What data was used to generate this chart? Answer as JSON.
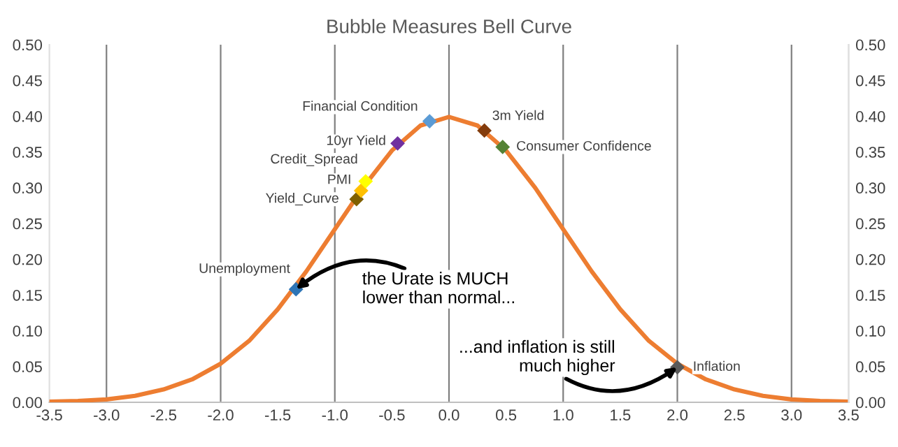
{
  "chart_data": {
    "type": "line",
    "title": "Bubble Measures Bell Curve",
    "xlim": [
      -3.5,
      3.5
    ],
    "xticks": [
      {
        "value": -3.5,
        "label": "-3.5"
      },
      {
        "value": -3,
        "label": "-3.0"
      },
      {
        "value": -2.5,
        "label": "-2.5"
      },
      {
        "value": -2,
        "label": "-2.0"
      },
      {
        "value": -1.5,
        "label": "-1.5"
      },
      {
        "value": -1,
        "label": "-1.0"
      },
      {
        "value": -0.5,
        "label": "-0.5"
      },
      {
        "value": 0,
        "label": "0.0"
      },
      {
        "value": 0.5,
        "label": "0.5"
      },
      {
        "value": 1,
        "label": "1.0"
      },
      {
        "value": 1.5,
        "label": "1.5"
      },
      {
        "value": 2,
        "label": "2.0"
      },
      {
        "value": 2.5,
        "label": "2.5"
      },
      {
        "value": 3,
        "label": "3.0"
      },
      {
        "value": 3.5,
        "label": "3.5"
      }
    ],
    "ylim": [
      0,
      0.5
    ],
    "yticks": [
      {
        "value": 0,
        "label": "0.00"
      },
      {
        "value": 0.05,
        "label": "0.05"
      },
      {
        "value": 0.1,
        "label": "0.10"
      },
      {
        "value": 0.15,
        "label": "0.15"
      },
      {
        "value": 0.2,
        "label": "0.20"
      },
      {
        "value": 0.25,
        "label": "0.25"
      },
      {
        "value": 0.3,
        "label": "0.30"
      },
      {
        "value": 0.35,
        "label": "0.35"
      },
      {
        "value": 0.4,
        "label": "0.40"
      },
      {
        "value": 0.45,
        "label": "0.45"
      },
      {
        "value": 0.5,
        "label": "0.50"
      }
    ],
    "y2lim": [
      0,
      0.5
    ],
    "y2ticks": [
      {
        "value": 0,
        "label": "0.00"
      },
      {
        "value": 0.05,
        "label": "0.05"
      },
      {
        "value": 0.1,
        "label": "0.10"
      },
      {
        "value": 0.15,
        "label": "0.15"
      },
      {
        "value": 0.2,
        "label": "0.20"
      },
      {
        "value": 0.25,
        "label": "0.25"
      },
      {
        "value": 0.3,
        "label": "0.30"
      },
      {
        "value": 0.35,
        "label": "0.35"
      },
      {
        "value": 0.4,
        "label": "0.40"
      },
      {
        "value": 0.45,
        "label": "0.45"
      },
      {
        "value": 0.5,
        "label": "0.50"
      }
    ],
    "grid": "x",
    "legend": false,
    "series": [
      {
        "color": "#ed7d31",
        "marker": "none",
        "line_style": "solid",
        "x": [
          -3.5,
          -3.25,
          -3,
          -2.75,
          -2.5,
          -2.25,
          -2,
          -1.75,
          -1.5,
          -1.25,
          -1,
          -0.75,
          -0.5,
          -0.25,
          0,
          0.25,
          0.5,
          0.75,
          1,
          1.25,
          1.5,
          1.75,
          2,
          2.25,
          2.5,
          2.75,
          3,
          3.25,
          3.5
        ],
        "values": [
          0.001,
          0.002,
          0.004,
          0.009,
          0.018,
          0.032,
          0.054,
          0.086,
          0.13,
          0.183,
          0.242,
          0.301,
          0.352,
          0.387,
          0.399,
          0.387,
          0.352,
          0.301,
          0.242,
          0.183,
          0.13,
          0.086,
          0.054,
          0.032,
          0.018,
          0.009,
          0.004,
          0.002,
          0.001
        ]
      },
      {
        "type": "scatter",
        "name": "Unemployment",
        "color": "#2e75b6",
        "marker": "diamond",
        "x": [
          -1.34
        ],
        "values": [
          0.158
        ]
      },
      {
        "type": "scatter",
        "name": "Yield_Curve",
        "color": "#806000",
        "marker": "diamond",
        "x": [
          -0.81
        ],
        "values": [
          0.284
        ]
      },
      {
        "type": "scatter",
        "name": "PMI",
        "color": "#ffc000",
        "marker": "diamond",
        "x": [
          -0.77
        ],
        "values": [
          0.296
        ]
      },
      {
        "type": "scatter",
        "name": "Credit_Spread",
        "color": "#ffff00",
        "marker": "diamond",
        "x": [
          -0.73
        ],
        "values": [
          0.309
        ]
      },
      {
        "type": "scatter",
        "name": "10yr Yield",
        "color": "#7030a0",
        "marker": "diamond",
        "x": [
          -0.45
        ],
        "values": [
          0.362
        ]
      },
      {
        "type": "scatter",
        "name": "Financial Condition",
        "color": "#5b9bd5",
        "marker": "diamond",
        "x": [
          -0.17
        ],
        "values": [
          0.393
        ]
      },
      {
        "type": "scatter",
        "name": "3m Yield",
        "color": "#843c0c",
        "marker": "diamond",
        "x": [
          0.31
        ],
        "values": [
          0.38
        ]
      },
      {
        "type": "scatter",
        "name": "Consumer Confidence",
        "color": "#548235",
        "marker": "diamond",
        "x": [
          0.47
        ],
        "values": [
          0.357
        ]
      },
      {
        "type": "scatter",
        "name": "Inflation",
        "color": "#595959",
        "marker": "diamond",
        "x": [
          2.0
        ],
        "values": [
          0.049
        ]
      }
    ],
    "annotations": [
      {
        "text": "the Urate is MUCH\nlower than normal...",
        "x": -1.34,
        "y": 0.158
      },
      {
        "text": "...and inflation is still\nmuch higher",
        "x": 2.0,
        "y": 0.049
      }
    ]
  }
}
